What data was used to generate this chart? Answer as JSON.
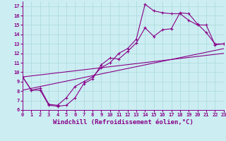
{
  "xlabel": "Windchill (Refroidissement éolien,°C)",
  "xlim": [
    0,
    23
  ],
  "ylim": [
    6,
    17.5
  ],
  "xticks": [
    0,
    1,
    2,
    3,
    4,
    5,
    6,
    7,
    8,
    9,
    10,
    11,
    12,
    13,
    14,
    15,
    16,
    17,
    18,
    19,
    20,
    21,
    22,
    23
  ],
  "yticks": [
    6,
    7,
    8,
    9,
    10,
    11,
    12,
    13,
    14,
    15,
    16,
    17
  ],
  "bg_color": "#cceef2",
  "grid_color": "#aad8dc",
  "line_color": "#880088",
  "line1_x": [
    0,
    1,
    2,
    3,
    4,
    5,
    6,
    7,
    8,
    9,
    10,
    11,
    12,
    13,
    14,
    15,
    16,
    17,
    18,
    19,
    20,
    21,
    22,
    23
  ],
  "line1_y": [
    9.5,
    8.1,
    8.1,
    6.5,
    6.4,
    6.5,
    7.3,
    8.8,
    9.3,
    10.8,
    11.5,
    11.4,
    12.2,
    13.1,
    14.7,
    13.8,
    14.5,
    14.6,
    16.3,
    16.2,
    15.1,
    14.2,
    13.0,
    13.0
  ],
  "line2_x": [
    0,
    1,
    2,
    3,
    4,
    5,
    6,
    7,
    8,
    9,
    10,
    11,
    12,
    13,
    14,
    15,
    16,
    17,
    18,
    19,
    20,
    21,
    22,
    23
  ],
  "line2_y": [
    9.5,
    8.1,
    8.3,
    6.6,
    6.5,
    7.3,
    8.5,
    9.0,
    9.5,
    10.5,
    11.0,
    12.0,
    12.5,
    13.5,
    17.2,
    16.5,
    16.3,
    16.2,
    16.2,
    15.5,
    15.0,
    15.0,
    12.9,
    13.0
  ],
  "line3_x": [
    0,
    23
  ],
  "line3_y": [
    8.1,
    12.5
  ],
  "line4_x": [
    0,
    23
  ],
  "line4_y": [
    9.5,
    12.0
  ],
  "marker_size": 2.5,
  "linewidth": 0.8,
  "tick_fontsize": 5,
  "xlabel_fontsize": 6.5
}
